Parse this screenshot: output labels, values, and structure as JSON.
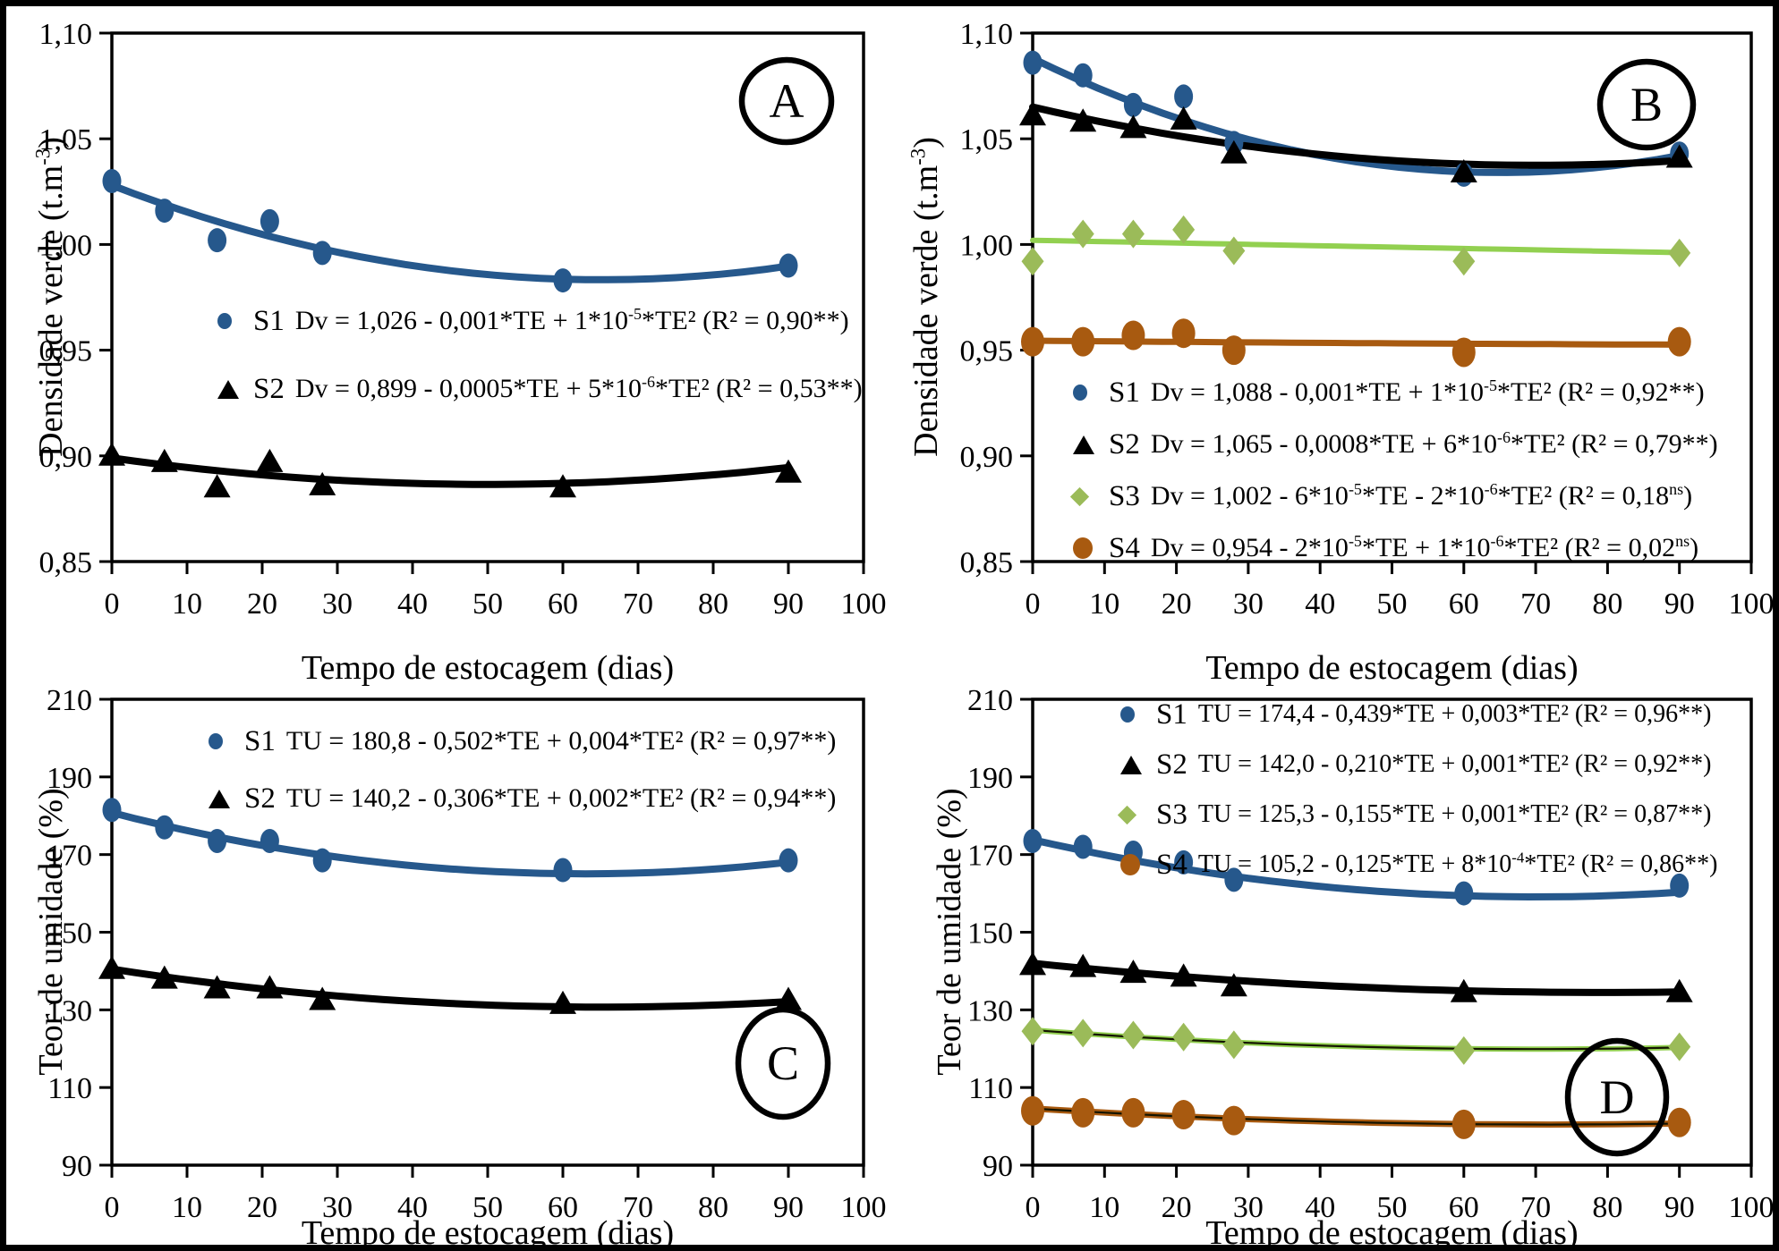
{
  "figure": {
    "background": "#ffffff",
    "border_color": "#000000",
    "axis_color": "#000000"
  },
  "chart_data": {
    "type": "scatter",
    "x_days": [
      0,
      7,
      14,
      21,
      28,
      60,
      90
    ],
    "xtick_labels": [
      "0",
      "10",
      "20",
      "30",
      "40",
      "50",
      "60",
      "70",
      "80",
      "90",
      "100"
    ],
    "xlim": [
      0,
      100
    ],
    "panels": [
      {
        "letter": "A",
        "ylabel": "Densidade verde (t.m^{-3})",
        "xlabel": "Tempo de estocagem (dias)",
        "ylim": [
          0.85,
          1.1
        ],
        "yticks": [
          {
            "v": 1.1,
            "label": "1,10"
          },
          {
            "v": 1.05,
            "label": "1,05"
          },
          {
            "v": 1.0,
            "label": "1,00"
          },
          {
            "v": 0.95,
            "label": "0,95"
          },
          {
            "v": 0.9,
            "label": "0,90"
          },
          {
            "v": 0.85,
            "label": "0,85"
          }
        ],
        "series": [
          {
            "name": "S1",
            "marker": "circle",
            "color": "#26588C",
            "line_color": "#26588C",
            "core_line": false,
            "values": [
              1.03,
              1.016,
              1.002,
              1.011,
              0.996,
              0.983,
              0.99
            ],
            "equation": "Dv = 1,026 - 0,001*TE + 1*10^{-5}*TE² (R² = 0,90**)",
            "trend": {
              "a": 1.028,
              "b": -0.00137,
              "c": 1.05e-05
            }
          },
          {
            "name": "S2",
            "marker": "triangle",
            "color": "#000000",
            "line_color": "#000000",
            "core_line": false,
            "values": [
              0.9,
              0.897,
              0.885,
              0.897,
              0.886,
              0.885,
              0.892
            ],
            "equation": "Dv = 0,899 - 0,0005*TE + 5*10^{-6}*TE² (R² = 0,53**)",
            "trend": {
              "a": 0.899,
              "b": -0.0005,
              "c": 5e-06
            }
          }
        ]
      },
      {
        "letter": "B",
        "ylabel": "Densidade verde (t.m^{-3})",
        "xlabel": "Tempo de estocagem (dias)",
        "ylim": [
          0.85,
          1.1
        ],
        "yticks": [
          {
            "v": 1.1,
            "label": "1,10"
          },
          {
            "v": 1.05,
            "label": "1,05"
          },
          {
            "v": 1.0,
            "label": "1,00"
          },
          {
            "v": 0.95,
            "label": "0,95"
          },
          {
            "v": 0.9,
            "label": "0,90"
          },
          {
            "v": 0.85,
            "label": "0,85"
          }
        ],
        "series": [
          {
            "name": "S1",
            "marker": "circle",
            "color": "#26588C",
            "line_color": "#26588C",
            "core_line": false,
            "values": [
              1.086,
              1.08,
              1.066,
              1.07,
              1.048,
              1.033,
              1.043
            ],
            "equation": "Dv = 1,088 - 0,001*TE + 1*10^{-5}*TE² (R² = 0,92**)",
            "trend": {
              "a": 1.088,
              "b": -0.001661,
              "c": 1.278e-05
            }
          },
          {
            "name": "S2",
            "marker": "triangle",
            "color": "#000000",
            "line_color": "#000000",
            "core_line": false,
            "values": [
              1.061,
              1.058,
              1.055,
              1.059,
              1.043,
              1.034,
              1.041
            ],
            "equation": "Dv = 1,065 - 0,0008*TE + 6*10^{-6}*TE² (R² = 0,79**)",
            "trend": {
              "a": 1.065,
              "b": -0.000786,
              "c": 5.61e-06
            }
          },
          {
            "name": "S3",
            "marker": "diamond",
            "color": "#9BBB59",
            "line_color": "#92D050",
            "core_line": false,
            "values": [
              0.992,
              1.005,
              1.005,
              1.007,
              0.997,
              0.992,
              0.996
            ],
            "equation": "Dv = 1,002 - 6*10^{-5}*TE - 2*10^{-6}*TE² (R² = 0,18^{ns})",
            "trend": {
              "a": 1.002,
              "b": -6.5e-05,
              "c": 0
            }
          },
          {
            "name": "S4",
            "marker": "circle-large",
            "color": "#A85A10",
            "line_color": "#A85A10",
            "core_line": false,
            "values": [
              0.954,
              0.954,
              0.957,
              0.958,
              0.95,
              0.949,
              0.954
            ],
            "equation": "Dv = 0,954 - 2*10^{-5}*TE + 1*10^{-6}*TE² (R² = 0,02^{ns})",
            "trend": {
              "a": 0.9545,
              "b": -3e-05,
              "c": 1e-07
            }
          }
        ]
      },
      {
        "letter": "C",
        "ylabel": "Teor de umidade (%)",
        "xlabel": "Tempo de estocagem (dias)",
        "ylim": [
          90,
          210
        ],
        "yticks": [
          {
            "v": 210,
            "label": "210"
          },
          {
            "v": 190,
            "label": "190"
          },
          {
            "v": 170,
            "label": "170"
          },
          {
            "v": 150,
            "label": "150"
          },
          {
            "v": 130,
            "label": "130"
          },
          {
            "v": 110,
            "label": "110"
          },
          {
            "v": 90,
            "label": "90"
          }
        ],
        "series": [
          {
            "name": "S1",
            "marker": "circle",
            "color": "#26588C",
            "line_color": "#26588C",
            "core_line": false,
            "values": [
              181.5,
              177.0,
              173.5,
              173.5,
              168.5,
              166.0,
              168.5
            ],
            "equation": "TU = 180,8 - 0,502*TE + 0,004*TE² (R² = 0,97**)",
            "trend": {
              "a": 180.8,
              "b": -0.502,
              "c": 0.004
            }
          },
          {
            "name": "S2",
            "marker": "triangle",
            "color": "#000000",
            "line_color": "#000000",
            "core_line": false,
            "values": [
              140.5,
              138.0,
              135.5,
              135.5,
              132.5,
              131.5,
              132.5
            ],
            "equation": "TU = 140,2 - 0,306*TE + 0,002*TE² (R² = 0,94**)",
            "trend": {
              "a": 140.5,
              "b": -0.3,
              "c": 0.0023
            }
          }
        ]
      },
      {
        "letter": "D",
        "ylabel": "Teor de umidade (%)",
        "xlabel": "Tempo de estocagem (dias)",
        "ylim": [
          90,
          210
        ],
        "yticks": [
          {
            "v": 210,
            "label": "210"
          },
          {
            "v": 190,
            "label": "190"
          },
          {
            "v": 170,
            "label": "170"
          },
          {
            "v": 150,
            "label": "150"
          },
          {
            "v": 130,
            "label": "130"
          },
          {
            "v": 110,
            "label": "110"
          },
          {
            "v": 90,
            "label": "90"
          }
        ],
        "series": [
          {
            "name": "S1",
            "marker": "circle",
            "color": "#26588C",
            "line_color": "#26588C",
            "core_line": false,
            "values": [
              173.5,
              172.0,
              170.5,
              168.0,
              163.5,
              160.0,
              162.0
            ],
            "equation": "TU = 174,4 - 0,439*TE + 0,003*TE² (R² = 0,96**)",
            "trend": {
              "a": 173.8,
              "b": -0.42,
              "c": 0.003
            }
          },
          {
            "name": "S2",
            "marker": "triangle",
            "color": "#000000",
            "line_color": "#000000",
            "core_line": false,
            "values": [
              141.5,
              141.0,
              139.5,
              138.5,
              136.0,
              134.5,
              134.5
            ],
            "equation": "TU = 142,0 - 0,210*TE + 0,001*TE² (R² = 0,92**)",
            "trend": {
              "a": 142.0,
              "b": -0.19,
              "c": 0.0012
            }
          },
          {
            "name": "S3",
            "marker": "diamond",
            "color": "#9BBB59",
            "line_color": "#92D050",
            "core_line": true,
            "values": [
              124.5,
              124.0,
              123.5,
              123.0,
              121.0,
              119.5,
              120.5
            ],
            "equation": "TU = 125,3 - 0,155*TE + 0,001*TE² (R² = 0,87**)",
            "trend": {
              "a": 124.8,
              "b": -0.14,
              "c": 0.001
            }
          },
          {
            "name": "S4",
            "marker": "circle-large",
            "color": "#A85A10",
            "line_color": "#A85A10",
            "core_line": true,
            "values": [
              104.0,
              103.5,
              103.5,
              103.0,
              101.5,
              100.5,
              101.0
            ],
            "equation": "TU = 105,2 - 0,125*TE + 8*10^{-4}*TE² (R² = 0,86**)",
            "trend": {
              "a": 104.6,
              "b": -0.115,
              "c": 0.0008
            }
          }
        ]
      }
    ]
  }
}
